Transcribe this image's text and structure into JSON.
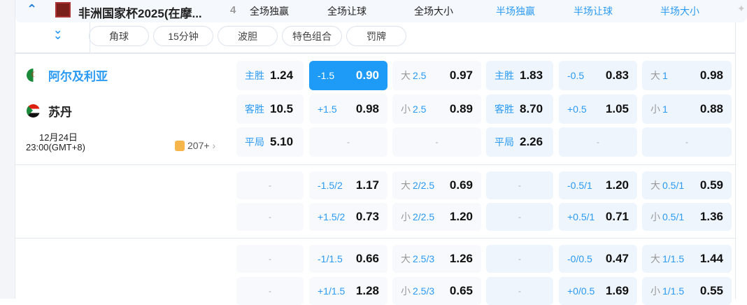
{
  "header": {
    "league": "非洲国家杯2025(在摩...",
    "count": "4",
    "tabs": [
      {
        "label": "全场独赢",
        "half": false
      },
      {
        "label": "全场让球",
        "half": false
      },
      {
        "label": "全场大小",
        "half": false
      },
      {
        "label": "半场独赢",
        "half": true
      },
      {
        "label": "半场让球",
        "half": true
      },
      {
        "label": "半场大小",
        "half": true
      }
    ]
  },
  "filters": [
    "角球",
    "15分钟",
    "波胆",
    "特色组合",
    "罚牌"
  ],
  "match": {
    "home": "阿尔及利亚",
    "away": "苏丹",
    "date": "12月24日",
    "time": "23:00(GMT+8)",
    "more": "207+"
  },
  "colors": {
    "accent": "#1e9bf6",
    "label": "#2a9af3",
    "cell_bg": "#f7f9fc",
    "half_cell_bg": "#eef5fd"
  },
  "blocks": [
    [
      [
        {
          "label": "主胜",
          "odds": "1.24"
        },
        {
          "label": "-1.5",
          "odds": "0.90",
          "selected": true
        },
        {
          "pre": "大",
          "label": "2.5",
          "odds": "0.97"
        },
        {
          "label": "主胜",
          "odds": "1.83"
        },
        {
          "label": "-0.5",
          "odds": "0.83"
        },
        {
          "pre": "大",
          "label": "1",
          "odds": "0.98"
        }
      ],
      [
        {
          "label": "客胜",
          "odds": "10.5"
        },
        {
          "label": "+1.5",
          "odds": "0.98"
        },
        {
          "pre": "小",
          "label": "2.5",
          "odds": "0.89"
        },
        {
          "label": "客胜",
          "odds": "8.70"
        },
        {
          "label": "+0.5",
          "odds": "1.05"
        },
        {
          "pre": "小",
          "label": "1",
          "odds": "0.88"
        }
      ],
      [
        {
          "label": "平局",
          "odds": "5.10"
        },
        {
          "dash": "-"
        },
        {
          "dash": "-"
        },
        {
          "label": "平局",
          "odds": "2.26"
        },
        {
          "dash": "-"
        },
        {
          "dash": "-"
        }
      ]
    ],
    [
      [
        {
          "dash": "-"
        },
        {
          "label": "-1.5/2",
          "odds": "1.17"
        },
        {
          "pre": "大",
          "label": "2/2.5",
          "odds": "0.69"
        },
        {
          "dash": "-"
        },
        {
          "label": "-0.5/1",
          "odds": "1.20"
        },
        {
          "pre": "大",
          "label": "0.5/1",
          "odds": "0.59"
        }
      ],
      [
        {
          "dash": "-"
        },
        {
          "label": "+1.5/2",
          "odds": "0.73"
        },
        {
          "pre": "小",
          "label": "2/2.5",
          "odds": "1.20"
        },
        {
          "dash": "-"
        },
        {
          "label": "+0.5/1",
          "odds": "0.71"
        },
        {
          "pre": "小",
          "label": "0.5/1",
          "odds": "1.36"
        }
      ]
    ],
    [
      [
        {
          "dash": "-"
        },
        {
          "label": "-1/1.5",
          "odds": "0.66"
        },
        {
          "pre": "大",
          "label": "2.5/3",
          "odds": "1.26"
        },
        {
          "dash": "-"
        },
        {
          "label": "-0/0.5",
          "odds": "0.47"
        },
        {
          "pre": "大",
          "label": "1/1.5",
          "odds": "1.44"
        }
      ],
      [
        {
          "dash": "-"
        },
        {
          "label": "+1/1.5",
          "odds": "1.28"
        },
        {
          "pre": "小",
          "label": "2.5/3",
          "odds": "0.65"
        },
        {
          "dash": "-"
        },
        {
          "label": "+0/0.5",
          "odds": "1.69"
        },
        {
          "pre": "小",
          "label": "1/1.5",
          "odds": "0.55"
        }
      ]
    ]
  ]
}
